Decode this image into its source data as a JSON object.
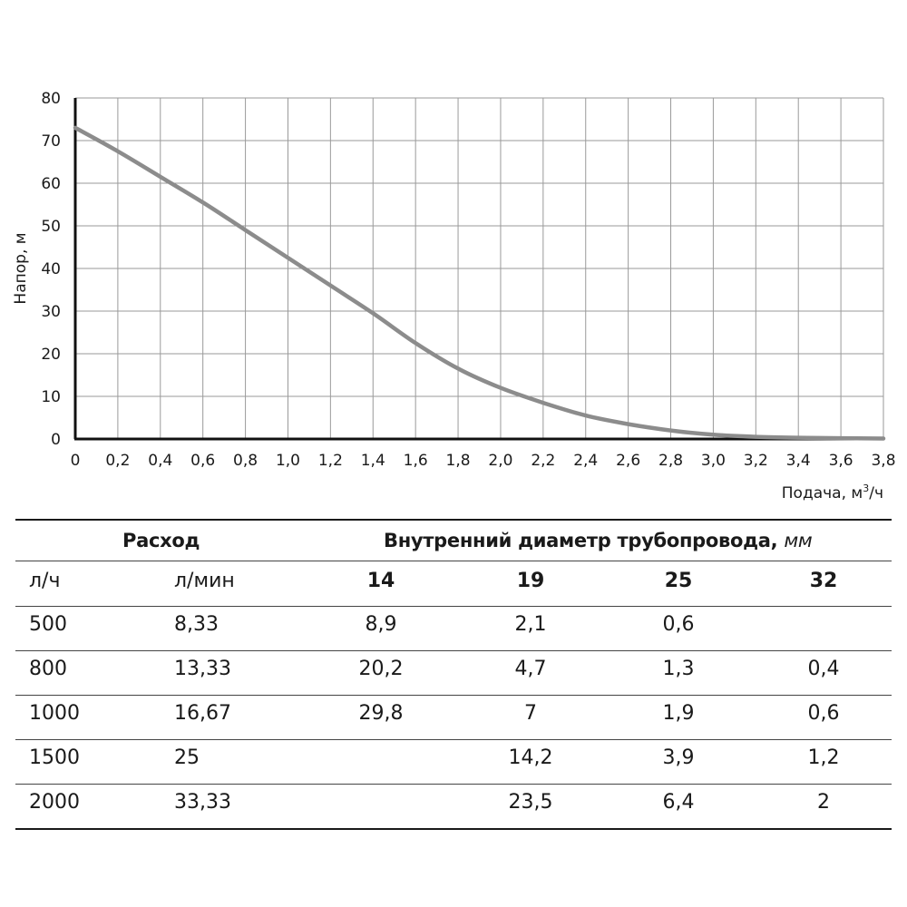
{
  "chart_data": {
    "type": "line",
    "xlabel_main": "Подача, м",
    "xlabel_sup": "3",
    "xlabel_tail": "/ч",
    "ylabel": "Напор, м",
    "xlim": [
      0,
      3.8
    ],
    "ylim": [
      0,
      80
    ],
    "grid": true,
    "x_tick_labels": [
      "0",
      "0,2",
      "0,4",
      "0,6",
      "0,8",
      "1,0",
      "1,2",
      "1,4",
      "1,6",
      "1,8",
      "2,0",
      "2,2",
      "2,4",
      "2,6",
      "2,8",
      "3,0",
      "3,2",
      "3,4",
      "3,6",
      "3,8"
    ],
    "y_tick_labels": [
      "0",
      "10",
      "20",
      "30",
      "40",
      "50",
      "60",
      "70",
      "80"
    ],
    "series": [
      {
        "color": "#8c8c8c",
        "x": [
          0,
          0.2,
          0.4,
          0.6,
          0.8,
          1.0,
          1.2,
          1.4,
          1.6,
          1.8,
          2.0,
          2.2,
          2.4,
          2.6,
          2.8,
          3.0,
          3.2,
          3.4,
          3.6,
          3.8
        ],
        "y": [
          73,
          67.5,
          61.5,
          55.5,
          49,
          42.5,
          36,
          29.5,
          22.5,
          16.5,
          12,
          8.5,
          5.5,
          3.5,
          2,
          1,
          0.5,
          0.3,
          0.2,
          0.1
        ]
      }
    ]
  },
  "table": {
    "group_flow": "Расход",
    "group_diameter": "Внутренний диаметр трубопровода,",
    "group_diameter_unit": "мм",
    "columns": [
      "л/ч",
      "л/мин",
      "14",
      "19",
      "25",
      "32"
    ],
    "rows": [
      [
        "500",
        "8,33",
        "8,9",
        "2,1",
        "0,6",
        ""
      ],
      [
        "800",
        "13,33",
        "20,2",
        "4,7",
        "1,3",
        "0,4"
      ],
      [
        "1000",
        "16,67",
        "29,8",
        "7",
        "1,9",
        "0,6"
      ],
      [
        "1500",
        "25",
        "",
        "14,2",
        "3,9",
        "1,2"
      ],
      [
        "2000",
        "33,33",
        "",
        "23,5",
        "6,4",
        "2"
      ]
    ]
  }
}
